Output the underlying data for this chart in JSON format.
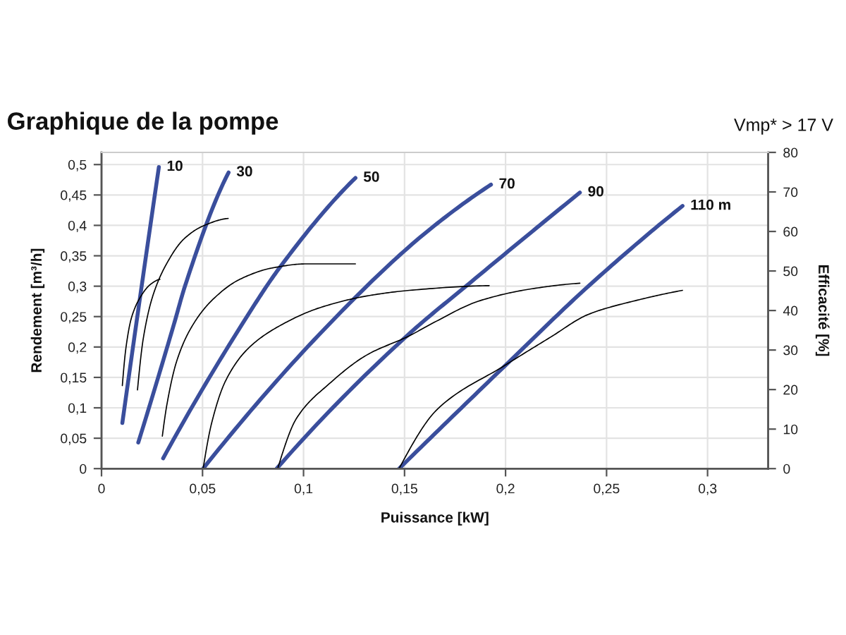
{
  "chart_data": {
    "type": "line",
    "title": "Graphique de la pompe",
    "subtitle": "Vmp* > 17 V",
    "xlabel": "Puissance [kW]",
    "ylabel": "Rendement [m³/h]",
    "y2label": "Efficacité [%]",
    "xlim": [
      0,
      0.33
    ],
    "xticks": [
      0,
      {
        "value": 0.05,
        "label": "0,05"
      },
      {
        "value": 0.1,
        "label": "0,1"
      },
      {
        "value": 0.15,
        "label": "0,15"
      },
      {
        "value": 0.2,
        "label": "0,2"
      },
      {
        "value": 0.25,
        "label": "0,25"
      },
      {
        "value": 0.3,
        "label": "0,3"
      }
    ],
    "ylim": [
      0,
      0.52
    ],
    "yticks": [
      0,
      {
        "value": 0.05,
        "label": "0,05"
      },
      {
        "value": 0.1,
        "label": "0,1"
      },
      {
        "value": 0.15,
        "label": "0,15"
      },
      {
        "value": 0.2,
        "label": "0,2"
      },
      {
        "value": 0.25,
        "label": "0,25"
      },
      {
        "value": 0.3,
        "label": "0,3"
      },
      {
        "value": 0.35,
        "label": "0,35"
      },
      {
        "value": 0.4,
        "label": "0,4"
      },
      {
        "value": 0.45,
        "label": "0,45"
      },
      {
        "value": 0.5,
        "label": "0,5"
      }
    ],
    "y2lim": [
      0,
      80
    ],
    "y2ticks": [
      0,
      10,
      20,
      30,
      40,
      50,
      60,
      70,
      80
    ],
    "grid": true,
    "series": [
      {
        "name": "10",
        "color": "#3a4e9c",
        "x": [
          0.0103,
          0.0172,
          0.0284
        ],
        "values": [
          0.075,
          0.238,
          0.496
        ]
      },
      {
        "name": "30",
        "color": "#3a4e9c",
        "x": [
          0.0182,
          0.0359,
          0.0413,
          0.0629
        ],
        "values": [
          0.043,
          0.238,
          0.3,
          0.487
        ]
      },
      {
        "name": "50",
        "color": "#3a4e9c",
        "x": [
          0.0305,
          0.0697,
          0.0883,
          0.1257
        ],
        "values": [
          0.017,
          0.238,
          0.331,
          0.478
        ]
      },
      {
        "name": "70",
        "color": "#3a4e9c",
        "x": [
          0.0503,
          0.1128,
          0.1594,
          0.1928
        ],
        "values": [
          0.0,
          0.238,
          0.385,
          0.467
        ]
      },
      {
        "name": "90",
        "color": "#3a4e9c",
        "x": [
          0.0867,
          0.1524,
          0.1804,
          0.2368
        ],
        "values": [
          0.0,
          0.222,
          0.3,
          0.454
        ]
      },
      {
        "name": "110 m",
        "color": "#3a4e9c",
        "x": [
          0.1473,
          0.2,
          0.241,
          0.2876
        ],
        "values": [
          0.0,
          0.17,
          0.3,
          0.432
        ]
      },
      {
        "color": "#000000",
        "axis": "y2",
        "x": [
          0.0103,
          0.0121,
          0.0149,
          0.0196,
          0.0242,
          0.0289
        ],
        "values": [
          21,
          30.6,
          38.3,
          43.7,
          46.6,
          47.9
        ]
      },
      {
        "color": "#000000",
        "axis": "y2",
        "x": [
          0.0178,
          0.0207,
          0.0254,
          0.0324,
          0.0406,
          0.0499,
          0.0627
        ],
        "values": [
          19.9,
          33,
          43.7,
          52,
          58,
          61.3,
          63.3
        ]
      },
      {
        "color": "#000000",
        "axis": "y2",
        "x": [
          0.0301,
          0.0324,
          0.0371,
          0.0441,
          0.0545,
          0.0685,
          0.0848,
          0.1011,
          0.1257
        ],
        "values": [
          8.2,
          16.3,
          27,
          35.4,
          42.5,
          47.9,
          50.8,
          51.8,
          51.8
        ]
      },
      {
        "color": "#000000",
        "axis": "y2",
        "x": [
          0.0503,
          0.0545,
          0.0615,
          0.073,
          0.0895,
          0.108,
          0.1315,
          0.1524,
          0.1919
        ],
        "values": [
          0,
          11.5,
          22.3,
          30.6,
          36.5,
          40.7,
          43.7,
          45.1,
          46.3
        ]
      },
      {
        "color": "#000000",
        "axis": "y2",
        "x": [
          0.0872,
          0.0965,
          0.1128,
          0.1315,
          0.1524,
          0.1639,
          0.1874,
          0.2131,
          0.2368
        ],
        "values": [
          0,
          12.7,
          21.5,
          28.8,
          33.6,
          36.8,
          42.5,
          45.5,
          46.9
        ]
      },
      {
        "color": "#000000",
        "axis": "y2",
        "x": [
          0.1473,
          0.1664,
          0.1996,
          0.2224,
          0.2409,
          0.2643,
          0.2876
        ],
        "values": [
          0,
          15.1,
          26.1,
          33.3,
          39,
          42.5,
          45.1
        ]
      }
    ]
  }
}
